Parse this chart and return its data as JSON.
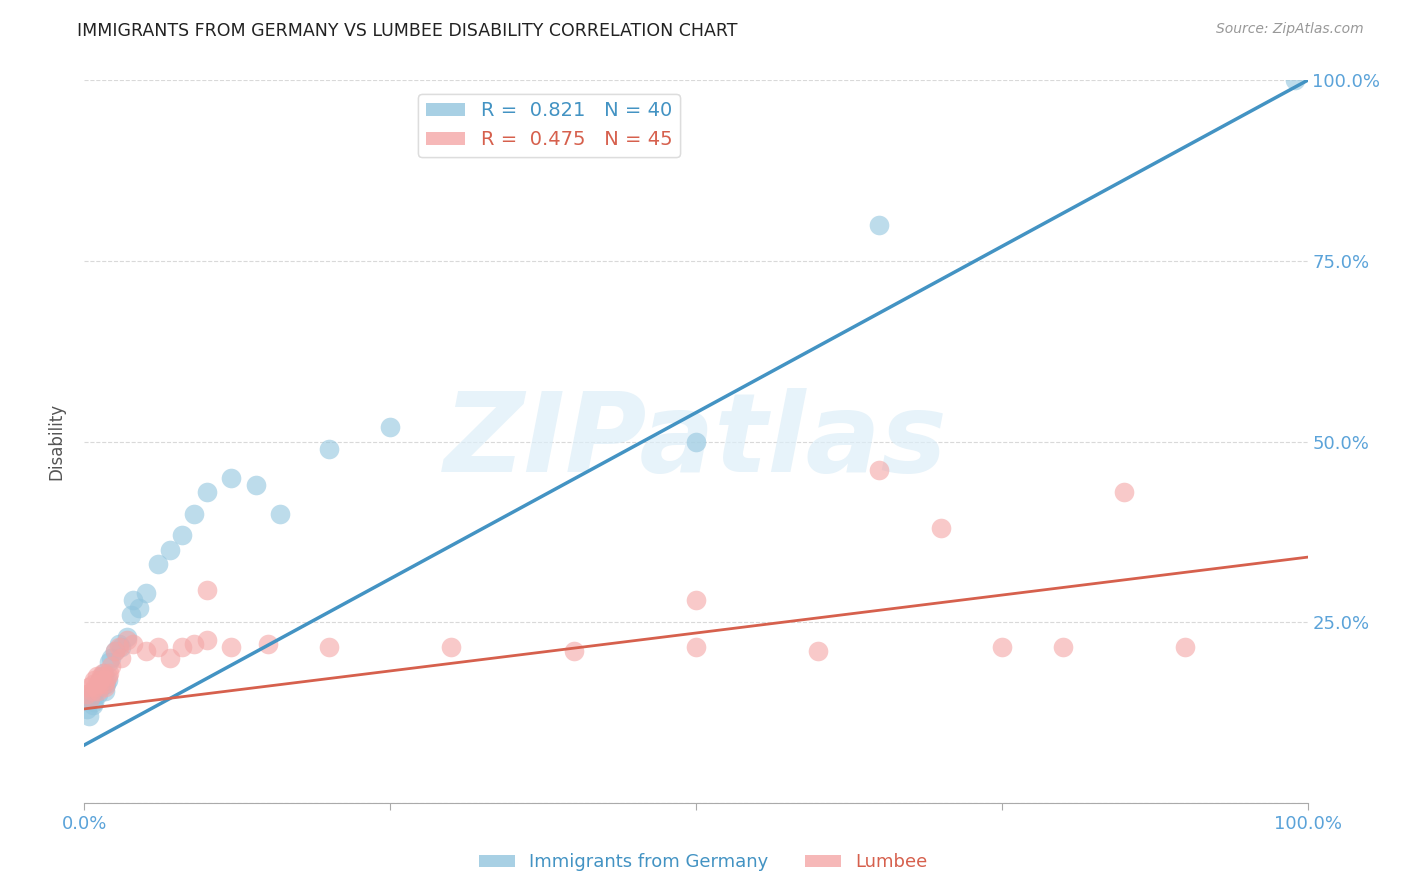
{
  "title": "IMMIGRANTS FROM GERMANY VS LUMBEE DISABILITY CORRELATION CHART",
  "source": "Source: ZipAtlas.com",
  "ylabel": "Disability",
  "watermark": "ZIPatlas",
  "xlim": [
    0.0,
    1.0
  ],
  "ylim": [
    0.0,
    1.0
  ],
  "blue_R": 0.821,
  "blue_N": 40,
  "pink_R": 0.475,
  "pink_N": 45,
  "legend_label_blue": "Immigrants from Germany",
  "legend_label_pink": "Lumbee",
  "blue_color": "#92c5de",
  "pink_color": "#f4a6a6",
  "blue_line_color": "#4393c3",
  "pink_line_color": "#d6604d",
  "axis_color": "#5ba3d9",
  "grid_color": "#d0d0d0",
  "title_color": "#222222",
  "blue_scatter_x": [
    0.002,
    0.004,
    0.005,
    0.006,
    0.007,
    0.008,
    0.009,
    0.01,
    0.011,
    0.012,
    0.013,
    0.014,
    0.015,
    0.016,
    0.017,
    0.018,
    0.019,
    0.02,
    0.022,
    0.025,
    0.028,
    0.03,
    0.035,
    0.038,
    0.04,
    0.045,
    0.05,
    0.06,
    0.07,
    0.08,
    0.09,
    0.1,
    0.12,
    0.14,
    0.16,
    0.2,
    0.25,
    0.5,
    0.65,
    0.99
  ],
  "blue_scatter_y": [
    0.13,
    0.12,
    0.145,
    0.15,
    0.135,
    0.14,
    0.155,
    0.16,
    0.15,
    0.165,
    0.17,
    0.16,
    0.175,
    0.18,
    0.155,
    0.165,
    0.17,
    0.195,
    0.2,
    0.21,
    0.22,
    0.215,
    0.23,
    0.26,
    0.28,
    0.27,
    0.29,
    0.33,
    0.35,
    0.37,
    0.4,
    0.43,
    0.45,
    0.44,
    0.4,
    0.49,
    0.52,
    0.5,
    0.8,
    1.0
  ],
  "pink_scatter_x": [
    0.002,
    0.004,
    0.005,
    0.006,
    0.007,
    0.008,
    0.009,
    0.01,
    0.011,
    0.012,
    0.013,
    0.014,
    0.015,
    0.016,
    0.017,
    0.018,
    0.019,
    0.02,
    0.022,
    0.025,
    0.028,
    0.03,
    0.035,
    0.04,
    0.05,
    0.06,
    0.07,
    0.08,
    0.09,
    0.1,
    0.12,
    0.15,
    0.2,
    0.3,
    0.4,
    0.5,
    0.6,
    0.65,
    0.7,
    0.75,
    0.8,
    0.85,
    0.9,
    0.1,
    0.5
  ],
  "pink_scatter_y": [
    0.15,
    0.16,
    0.145,
    0.155,
    0.165,
    0.17,
    0.16,
    0.175,
    0.155,
    0.165,
    0.17,
    0.175,
    0.18,
    0.165,
    0.16,
    0.17,
    0.175,
    0.18,
    0.19,
    0.21,
    0.215,
    0.2,
    0.225,
    0.22,
    0.21,
    0.215,
    0.2,
    0.215,
    0.22,
    0.225,
    0.215,
    0.22,
    0.215,
    0.215,
    0.21,
    0.215,
    0.21,
    0.46,
    0.38,
    0.215,
    0.215,
    0.43,
    0.215,
    0.295,
    0.28
  ],
  "blue_line_x": [
    0.0,
    1.0
  ],
  "blue_line_y": [
    0.08,
    1.0
  ],
  "pink_line_x": [
    0.0,
    1.0
  ],
  "pink_line_y": [
    0.13,
    0.34
  ]
}
